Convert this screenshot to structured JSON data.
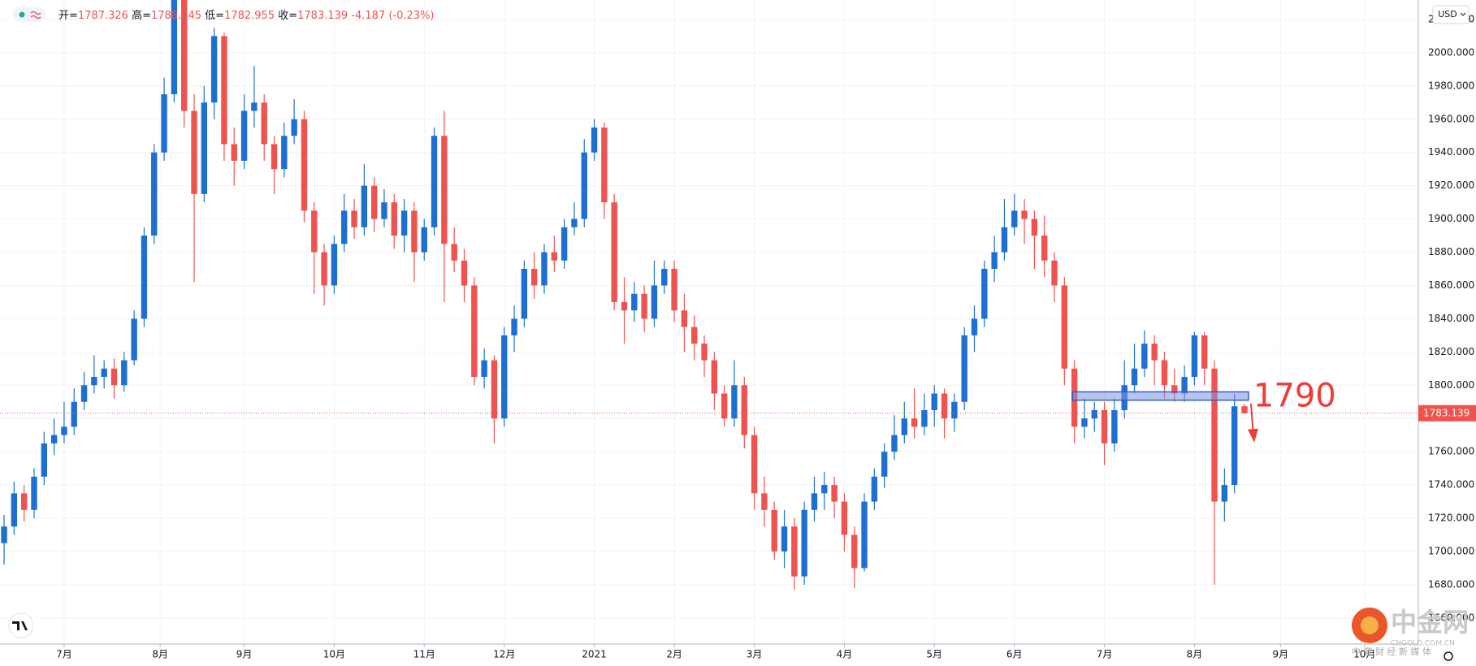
{
  "chart_data": {
    "type": "candlestick",
    "legend_labels": [
      "开=",
      "高=",
      "低=",
      "收="
    ],
    "change": "-4.187",
    "change_pct": "(-0.23%)",
    "currency": "USD",
    "annotation": "1790",
    "zone": {
      "x": [
        106.8,
        124.4
      ],
      "y": [
        1791,
        1796
      ]
    },
    "up_color": "#1e6fd2",
    "down_color": "#ef5350",
    "grid": true,
    "watermark": {
      "name": "中金网",
      "site": "CNGOLD.COM.CN",
      "slogan": "中 育 财 经 新 媒 体"
    },
    "xlim": [
      -0.41,
      141.3
    ],
    "xticks": [
      {
        "value": 6,
        "label": "7月"
      },
      {
        "value": 15.6,
        "label": "8月"
      },
      {
        "value": 24,
        "label": "9月"
      },
      {
        "value": 33,
        "label": "10月"
      },
      {
        "value": 42,
        "label": "11月"
      },
      {
        "value": 50,
        "label": "12月"
      },
      {
        "value": 59,
        "label": "2021"
      },
      {
        "value": 67,
        "label": "2月"
      },
      {
        "value": 75,
        "label": "3月"
      },
      {
        "value": 84,
        "label": "4月"
      },
      {
        "value": 93,
        "label": "5月"
      },
      {
        "value": 101,
        "label": "6月"
      },
      {
        "value": 110,
        "label": "7月"
      },
      {
        "value": 119,
        "label": "8月"
      },
      {
        "value": 127.6,
        "label": "9月"
      },
      {
        "value": 136,
        "label": "10月"
      }
    ],
    "ylim": [
      1644.3,
      2031.7
    ],
    "yticks": [
      {
        "value": 1660,
        "label": "1660.000"
      },
      {
        "value": 1680,
        "label": "1680.000"
      },
      {
        "value": 1700,
        "label": "1700.000"
      },
      {
        "value": 1720,
        "label": "1720.000"
      },
      {
        "value": 1740,
        "label": "1740.000"
      },
      {
        "value": 1760,
        "label": "1760.000"
      },
      {
        "value": 1780,
        "label": "1780.000"
      },
      {
        "value": 1800,
        "label": "1800.000"
      },
      {
        "value": 1820,
        "label": "1820.000"
      },
      {
        "value": 1840,
        "label": "1840.000"
      },
      {
        "value": 1860,
        "label": "1860.000"
      },
      {
        "value": 1880,
        "label": "1880.000"
      },
      {
        "value": 1900,
        "label": "1900.000"
      },
      {
        "value": 1920,
        "label": "1920.000"
      },
      {
        "value": 1940,
        "label": "1940.000"
      },
      {
        "value": 1960,
        "label": "1960.000"
      },
      {
        "value": 1980,
        "label": "1980.000"
      },
      {
        "value": 2000,
        "label": "2000.000"
      },
      {
        "value": 2020,
        "label": "2020.000"
      }
    ],
    "open": [
      1705,
      1715,
      1735,
      1725,
      1745,
      1765,
      1770,
      1775,
      1790,
      1800,
      1805,
      1810,
      1800,
      1815,
      1840,
      1890,
      1940,
      1975,
      2035,
      1965,
      1915,
      1970,
      2010,
      1945,
      1935,
      1965,
      1970,
      1945,
      1930,
      1950,
      1960,
      1905,
      1880,
      1860,
      1885,
      1905,
      1895,
      1920,
      1900,
      1910,
      1890,
      1905,
      1880,
      1895,
      1950,
      1885,
      1875,
      1860,
      1805,
      1815,
      1780,
      1830,
      1840,
      1870,
      1860,
      1880,
      1875,
      1895,
      1900,
      1940,
      1955,
      1910,
      1850,
      1845,
      1855,
      1840,
      1860,
      1870,
      1845,
      1835,
      1825,
      1815,
      1795,
      1780,
      1800,
      1770,
      1735,
      1725,
      1700,
      1715,
      1685,
      1725,
      1735,
      1740,
      1730,
      1710,
      1690,
      1730,
      1745,
      1760,
      1770,
      1780,
      1775,
      1785,
      1795,
      1780,
      1790,
      1830,
      1840,
      1870,
      1880,
      1895,
      1905,
      1900,
      1890,
      1875,
      1860,
      1810,
      1775,
      1780,
      1785,
      1765,
      1785,
      1800,
      1810,
      1825,
      1815,
      1800,
      1795,
      1805,
      1830,
      1810,
      1730,
      1740,
      1787.326
    ],
    "high": [
      1722,
      1742,
      1740,
      1750,
      1772,
      1780,
      1790,
      1798,
      1808,
      1818,
      1815,
      1816,
      1820,
      1845,
      1895,
      1945,
      1985,
      2075,
      2040,
      1975,
      1980,
      2015,
      2012,
      1955,
      1975,
      1992,
      1975,
      1950,
      1958,
      1972,
      1965,
      1910,
      1885,
      1890,
      1915,
      1912,
      1933,
      1925,
      1918,
      1915,
      1912,
      1910,
      1900,
      1955,
      1965,
      1895,
      1882,
      1865,
      1822,
      1818,
      1835,
      1848,
      1875,
      1880,
      1885,
      1890,
      1900,
      1910,
      1948,
      1960,
      1958,
      1915,
      1865,
      1862,
      1860,
      1875,
      1875,
      1875,
      1855,
      1842,
      1830,
      1820,
      1800,
      1815,
      1805,
      1775,
      1745,
      1730,
      1725,
      1720,
      1730,
      1745,
      1748,
      1745,
      1735,
      1715,
      1735,
      1750,
      1765,
      1782,
      1790,
      1798,
      1795,
      1800,
      1798,
      1795,
      1835,
      1848,
      1875,
      1890,
      1912,
      1915,
      1912,
      1905,
      1902,
      1880,
      1865,
      1815,
      1792,
      1790,
      1790,
      1792,
      1815,
      1825,
      1833,
      1830,
      1820,
      1810,
      1812,
      1832,
      1832,
      1815,
      1750,
      1795,
      1788.945
    ],
    "low": [
      1692,
      1710,
      1718,
      1720,
      1740,
      1758,
      1765,
      1770,
      1785,
      1795,
      1798,
      1792,
      1796,
      1812,
      1835,
      1885,
      1935,
      1970,
      1955,
      1862,
      1910,
      1960,
      1935,
      1920,
      1930,
      1955,
      1935,
      1915,
      1925,
      1945,
      1898,
      1855,
      1848,
      1855,
      1880,
      1888,
      1890,
      1892,
      1895,
      1882,
      1880,
      1862,
      1875,
      1890,
      1850,
      1868,
      1850,
      1800,
      1798,
      1765,
      1775,
      1820,
      1835,
      1852,
      1855,
      1868,
      1870,
      1890,
      1895,
      1935,
      1900,
      1845,
      1825,
      1838,
      1832,
      1835,
      1855,
      1838,
      1820,
      1815,
      1805,
      1785,
      1775,
      1775,
      1762,
      1725,
      1715,
      1695,
      1690,
      1677,
      1680,
      1718,
      1725,
      1720,
      1700,
      1678,
      1688,
      1725,
      1738,
      1755,
      1765,
      1768,
      1770,
      1775,
      1768,
      1772,
      1785,
      1820,
      1835,
      1862,
      1875,
      1890,
      1885,
      1870,
      1865,
      1850,
      1800,
      1765,
      1768,
      1772,
      1752,
      1760,
      1780,
      1795,
      1805,
      1800,
      1792,
      1790,
      1790,
      1800,
      1800,
      1680,
      1718,
      1735,
      1782.955
    ],
    "close": [
      1715,
      1735,
      1725,
      1745,
      1765,
      1770,
      1775,
      1790,
      1800,
      1805,
      1810,
      1800,
      1815,
      1840,
      1890,
      1940,
      1975,
      2035,
      1965,
      1915,
      1970,
      2010,
      1945,
      1935,
      1965,
      1970,
      1945,
      1930,
      1950,
      1960,
      1905,
      1880,
      1860,
      1885,
      1905,
      1895,
      1920,
      1900,
      1910,
      1890,
      1905,
      1880,
      1895,
      1950,
      1885,
      1875,
      1860,
      1805,
      1815,
      1780,
      1830,
      1840,
      1870,
      1860,
      1880,
      1875,
      1895,
      1900,
      1940,
      1955,
      1910,
      1850,
      1845,
      1855,
      1840,
      1860,
      1870,
      1845,
      1835,
      1825,
      1815,
      1795,
      1780,
      1800,
      1770,
      1735,
      1725,
      1700,
      1715,
      1685,
      1725,
      1735,
      1740,
      1730,
      1710,
      1690,
      1730,
      1745,
      1760,
      1770,
      1780,
      1775,
      1785,
      1795,
      1780,
      1790,
      1830,
      1840,
      1870,
      1880,
      1895,
      1905,
      1900,
      1890,
      1875,
      1860,
      1810,
      1775,
      1780,
      1785,
      1765,
      1785,
      1800,
      1810,
      1825,
      1815,
      1800,
      1795,
      1805,
      1830,
      1810,
      1730,
      1740,
      1787.326,
      1783.139
    ]
  }
}
